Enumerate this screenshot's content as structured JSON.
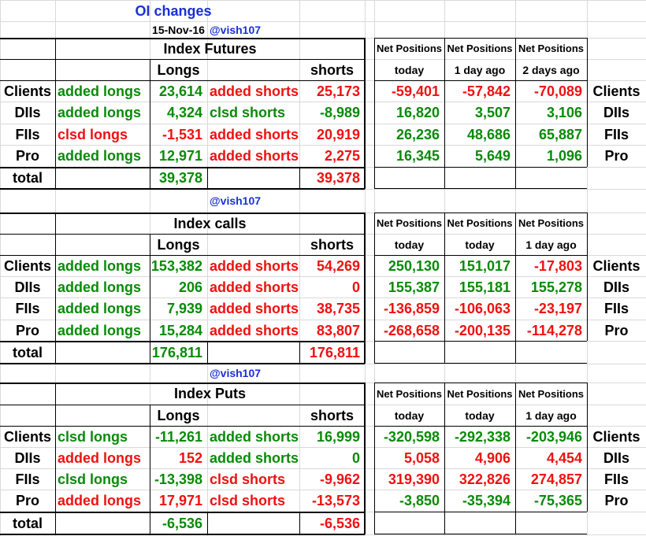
{
  "title": "OI changes",
  "date": "15-Nov-16",
  "handle": "@vish107",
  "colors": {
    "green": "#0a8a0a",
    "red": "#ee1111",
    "blue": "#1a2fd6",
    "black": "#000000"
  },
  "sections": [
    {
      "title": "Index Futures",
      "longs_header": "Longs",
      "shorts_header": "shorts",
      "np_headers": [
        "Net Positions",
        "Net Positions",
        "Net Positions"
      ],
      "np_sub": [
        "today",
        "1 day ago",
        "2 days ago"
      ],
      "rows": [
        {
          "name": "Clients",
          "long_action": "added longs",
          "long_action_color": "green",
          "longs": "23,614",
          "short_action": "added shorts",
          "short_action_color": "red",
          "shorts": "25,173",
          "np": [
            {
              "v": "-59,401",
              "c": "red"
            },
            {
              "v": "-57,842",
              "c": "red"
            },
            {
              "v": "-70,089",
              "c": "red"
            }
          ]
        },
        {
          "name": "DIIs",
          "long_action": "added longs",
          "long_action_color": "green",
          "longs": "4,324",
          "short_action": "clsd shorts",
          "short_action_color": "green",
          "shorts": "-8,989",
          "np": [
            {
              "v": "16,820",
              "c": "green"
            },
            {
              "v": "3,507",
              "c": "green"
            },
            {
              "v": "3,106",
              "c": "green"
            }
          ]
        },
        {
          "name": "FIIs",
          "long_action": "clsd longs",
          "long_action_color": "red",
          "longs": "-1,531",
          "short_action": "added shorts",
          "short_action_color": "red",
          "shorts": "20,919",
          "np": [
            {
              "v": "26,236",
              "c": "green"
            },
            {
              "v": "48,686",
              "c": "green"
            },
            {
              "v": "65,887",
              "c": "green"
            }
          ]
        },
        {
          "name": "Pro",
          "long_action": "added longs",
          "long_action_color": "green",
          "longs": "12,971",
          "short_action": "added shorts",
          "short_action_color": "red",
          "shorts": "2,275",
          "np": [
            {
              "v": "16,345",
              "c": "green"
            },
            {
              "v": "5,649",
              "c": "green"
            },
            {
              "v": "1,096",
              "c": "green"
            }
          ]
        }
      ],
      "total_label": "total",
      "total_longs": "39,378",
      "total_shorts": "39,378"
    },
    {
      "title": "Index calls",
      "longs_header": "Longs",
      "shorts_header": "shorts",
      "np_headers": [
        "Net Positions",
        "Net Positions",
        "Net Positions"
      ],
      "np_sub": [
        "today",
        "today",
        "1 day ago"
      ],
      "rows": [
        {
          "name": "Clients",
          "long_action": "added longs",
          "long_action_color": "green",
          "longs": "153,382",
          "short_action": "added shorts",
          "short_action_color": "red",
          "shorts": "54,269",
          "np": [
            {
              "v": "250,130",
              "c": "green"
            },
            {
              "v": "151,017",
              "c": "green"
            },
            {
              "v": "-17,803",
              "c": "red"
            }
          ]
        },
        {
          "name": "DIIs",
          "long_action": "added longs",
          "long_action_color": "green",
          "longs": "206",
          "short_action": "added shorts",
          "short_action_color": "red",
          "shorts": "0",
          "np": [
            {
              "v": "155,387",
              "c": "green"
            },
            {
              "v": "155,181",
              "c": "green"
            },
            {
              "v": "155,278",
              "c": "green"
            }
          ]
        },
        {
          "name": "FIIs",
          "long_action": "added longs",
          "long_action_color": "green",
          "longs": "7,939",
          "short_action": "added shorts",
          "short_action_color": "red",
          "shorts": "38,735",
          "np": [
            {
              "v": "-136,859",
              "c": "red"
            },
            {
              "v": "-106,063",
              "c": "red"
            },
            {
              "v": "-23,197",
              "c": "red"
            }
          ]
        },
        {
          "name": "Pro",
          "long_action": "added longs",
          "long_action_color": "green",
          "longs": "15,284",
          "short_action": "added shorts",
          "short_action_color": "red",
          "shorts": "83,807",
          "np": [
            {
              "v": "-268,658",
              "c": "red"
            },
            {
              "v": "-200,135",
              "c": "red"
            },
            {
              "v": "-114,278",
              "c": "red"
            }
          ]
        }
      ],
      "total_label": "total",
      "total_longs": "176,811",
      "total_shorts": "176,811"
    },
    {
      "title": "Index Puts",
      "longs_header": "Longs",
      "shorts_header": "shorts",
      "np_headers": [
        "Net Positions",
        "Net Positions",
        "Net Positions"
      ],
      "np_sub": [
        "today",
        "today",
        "1 day ago"
      ],
      "rows": [
        {
          "name": "Clients",
          "long_action": "clsd longs",
          "long_action_color": "green",
          "longs": "-11,261",
          "short_action": "added shorts",
          "short_action_color": "green",
          "shorts": "16,999",
          "np": [
            {
              "v": "-320,598",
              "c": "green"
            },
            {
              "v": "-292,338",
              "c": "green"
            },
            {
              "v": "-203,946",
              "c": "green"
            }
          ]
        },
        {
          "name": "DIIs",
          "long_action": "added longs",
          "long_action_color": "red",
          "longs": "152",
          "short_action": "added shorts",
          "short_action_color": "green",
          "shorts": "0",
          "np": [
            {
              "v": "5,058",
              "c": "red"
            },
            {
              "v": "4,906",
              "c": "red"
            },
            {
              "v": "4,454",
              "c": "red"
            }
          ]
        },
        {
          "name": "FIIs",
          "long_action": "clsd longs",
          "long_action_color": "green",
          "longs": "-13,398",
          "short_action": "clsd shorts",
          "short_action_color": "red",
          "shorts": "-9,962",
          "np": [
            {
              "v": "319,390",
              "c": "red"
            },
            {
              "v": "322,826",
              "c": "red"
            },
            {
              "v": "274,857",
              "c": "red"
            }
          ]
        },
        {
          "name": "Pro",
          "long_action": "added longs",
          "long_action_color": "red",
          "longs": "17,971",
          "short_action": "clsd shorts",
          "short_action_color": "red",
          "shorts": "-13,573",
          "np": [
            {
              "v": "-3,850",
              "c": "green"
            },
            {
              "v": "-35,394",
              "c": "green"
            },
            {
              "v": "-75,365",
              "c": "green"
            }
          ]
        }
      ],
      "total_label": "total",
      "total_longs": "-6,536",
      "total_shorts": "-6,536"
    }
  ]
}
